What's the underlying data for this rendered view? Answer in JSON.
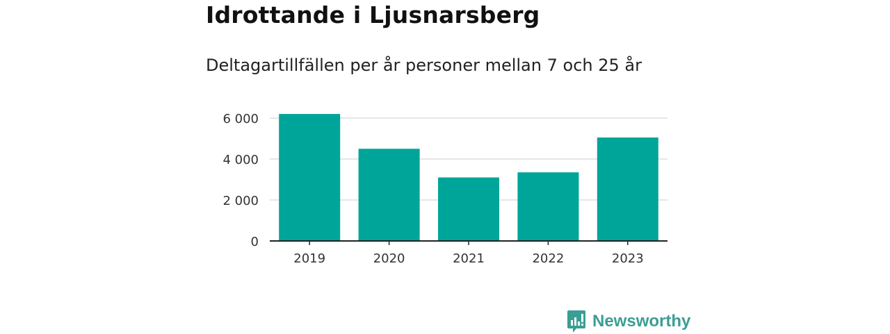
{
  "title": "Idrottande i Ljusnarsberg",
  "subtitle": "Deltagartillfällen per år personer mellan 7 och 25 år",
  "brand": {
    "name": "Newsworthy",
    "icon": "newsworthy-logo-icon",
    "color": "#3a9e94"
  },
  "colors": {
    "bar": "#00a59a",
    "grid": "#dddddd",
    "axis": "#222222"
  },
  "chart_data": {
    "type": "bar",
    "categories": [
      "2019",
      "2020",
      "2021",
      "2022",
      "2023"
    ],
    "values": [
      6200,
      4500,
      3100,
      3350,
      5050
    ],
    "title": "Idrottande i Ljusnarsberg",
    "subtitle": "Deltagartillfällen per år personer mellan 7 och 25 år",
    "xlabel": "",
    "ylabel": "",
    "ylim": [
      0,
      6000
    ],
    "yticks": [
      0,
      2000,
      4000,
      6000
    ],
    "ytick_labels": [
      "0",
      "2 000",
      "4 000",
      "6 000"
    ],
    "grid": true,
    "legend": "none"
  }
}
